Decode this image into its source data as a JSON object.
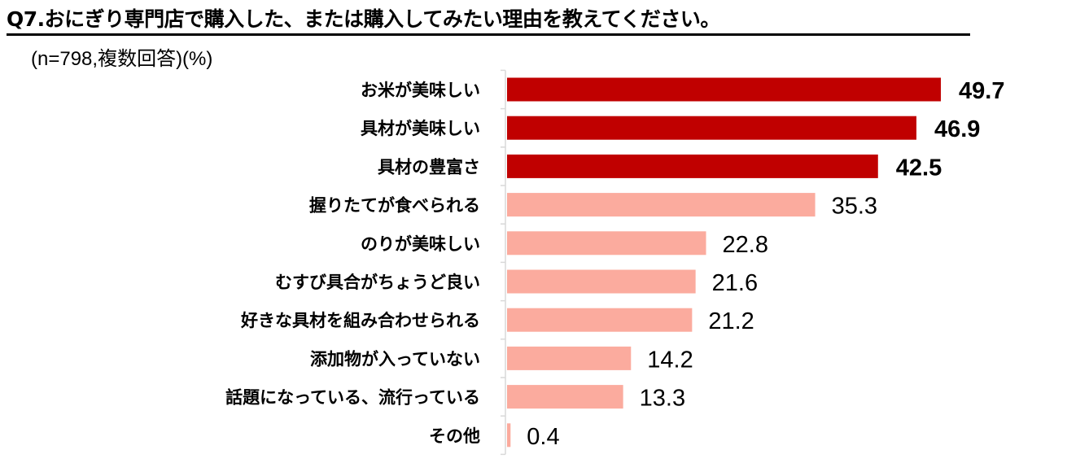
{
  "chart_data": {
    "type": "bar",
    "orientation": "horizontal",
    "title": "Q7.おにぎり専門店で購入した、または購入してみたい理由を教えてください。",
    "subtitle": "(n=798,複数回答)(%)",
    "xlabel": "",
    "ylabel": "",
    "xlim": [
      0,
      50
    ],
    "grid": false,
    "categories": [
      "お米が美味しい",
      "具材が美味しい",
      "具材の豊富さ",
      "握りたてが食べられる",
      "のりが美味しい",
      "むすび具合がちょうど良い",
      "好きな具材を組み合わせられる",
      "添加物が入っていない",
      "話題になっている、流行っている",
      "その他"
    ],
    "values": [
      49.7,
      46.9,
      42.5,
      35.3,
      22.8,
      21.6,
      21.2,
      14.2,
      13.3,
      0.4
    ],
    "value_labels": [
      "49.7",
      "46.9",
      "42.5",
      "35.3",
      "22.8",
      "21.6",
      "21.2",
      "14.2",
      "13.3",
      "0.4"
    ],
    "highlight_top_n": 3,
    "colors": {
      "highlight": "#c00000",
      "normal": "#fbab9e",
      "axis": "#d9d9d9"
    }
  }
}
